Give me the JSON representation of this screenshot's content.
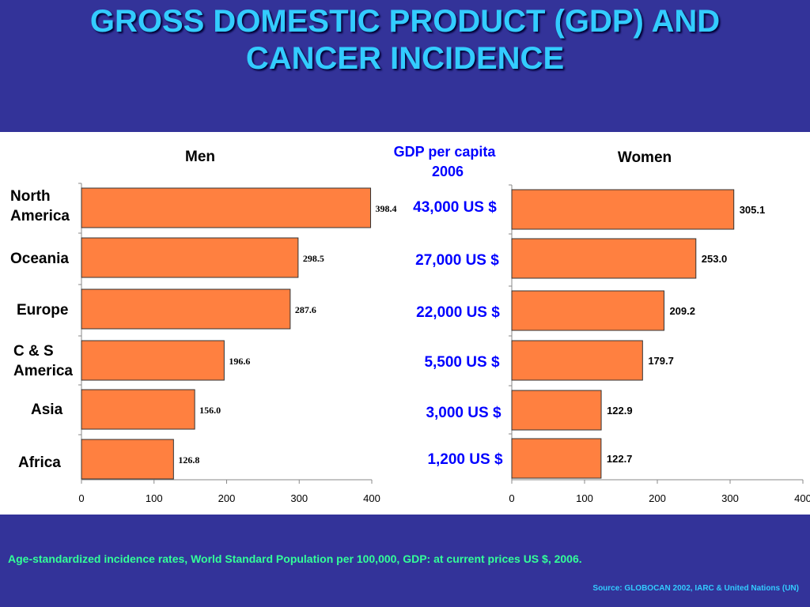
{
  "title": {
    "line1": "GROSS DOMESTIC PRODUCT (GDP) AND",
    "line2": "CANCER INCIDENCE"
  },
  "footnote": "Age-standardized incidence rates, World Standard Population per 100,000, GDP: at current prices US $, 2006.",
  "source": "Source: GLOBOCAN 2002, IARC & United Nations (UN)",
  "colors": {
    "background": "#333399",
    "title": "#33ccff",
    "bar_fill": "#ff8040",
    "gdp_text": "#0000ff",
    "footnote": "#33ff99"
  },
  "gdp": {
    "title_line1": "GDP per capita",
    "title_line2": "2006",
    "values": [
      "43,000 US $",
      "27,000 US $",
      "22,000 US $",
      "5,500 US $",
      "3,000 US $",
      "1,200 US $"
    ]
  },
  "chart_data": [
    {
      "type": "bar",
      "orientation": "horizontal",
      "title": "Men",
      "categories": [
        "North America",
        "Oceania",
        "Europe",
        "C & S America",
        "Asia",
        "Africa"
      ],
      "values": [
        398.4,
        298.5,
        287.6,
        196.6,
        156.0,
        126.8
      ],
      "value_labels": [
        "398.4",
        "298.5",
        "287.6",
        "196.6",
        "156.0",
        "126.8"
      ],
      "xlim": [
        0,
        400
      ],
      "xticks": [
        "0",
        "100",
        "200",
        "300",
        "400"
      ],
      "grid": false
    },
    {
      "type": "bar",
      "orientation": "horizontal",
      "title": "Women",
      "categories": [
        "North America",
        "Oceania",
        "Europe",
        "C & S America",
        "Asia",
        "Africa"
      ],
      "values": [
        305.1,
        253.0,
        209.2,
        179.7,
        122.9,
        122.7
      ],
      "value_labels": [
        "305.1",
        "253.0",
        "209.2",
        "179.7",
        "122.9",
        "122.7"
      ],
      "xlim": [
        0,
        400
      ],
      "xticks": [
        "0",
        "100",
        "200",
        "300",
        "400"
      ],
      "grid": false
    }
  ]
}
